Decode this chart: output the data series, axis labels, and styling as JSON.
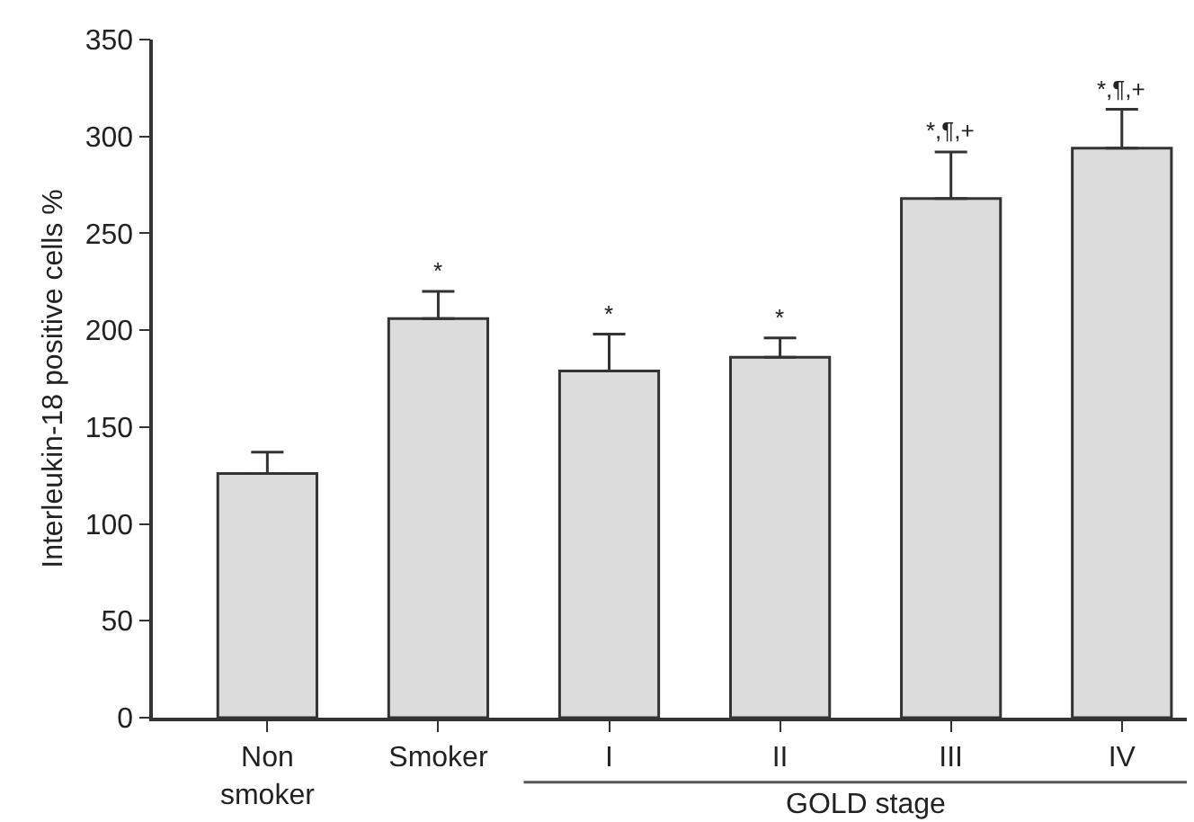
{
  "chart_data": {
    "type": "bar",
    "ylabel": "Interleukin-18 positive cells %",
    "categories": [
      "Non smoker",
      "Smoker",
      "I",
      "II",
      "III",
      "IV"
    ],
    "values": [
      126,
      206,
      179,
      186,
      268,
      294
    ],
    "errors": [
      [
        126,
        137
      ],
      [
        206,
        220
      ],
      [
        179,
        198
      ],
      [
        186,
        196
      ],
      [
        268,
        292
      ],
      [
        294,
        314
      ]
    ],
    "color": "#dcdcdd",
    "ylim": [
      0,
      350
    ],
    "yticks": [
      0,
      50,
      100,
      150,
      200,
      250,
      300,
      350
    ],
    "grid": false,
    "annotations": [
      {
        "text": "*",
        "x": "Smoker",
        "y": 220
      },
      {
        "text": "*",
        "x": "I",
        "y": 198
      },
      {
        "text": "*",
        "x": "II",
        "y": 196
      },
      {
        "text": "*,¶,+",
        "x": "III",
        "y": 292
      },
      {
        "text": "*,¶,+",
        "x": "IV",
        "y": 314
      },
      "GOLD stage"
    ]
  }
}
